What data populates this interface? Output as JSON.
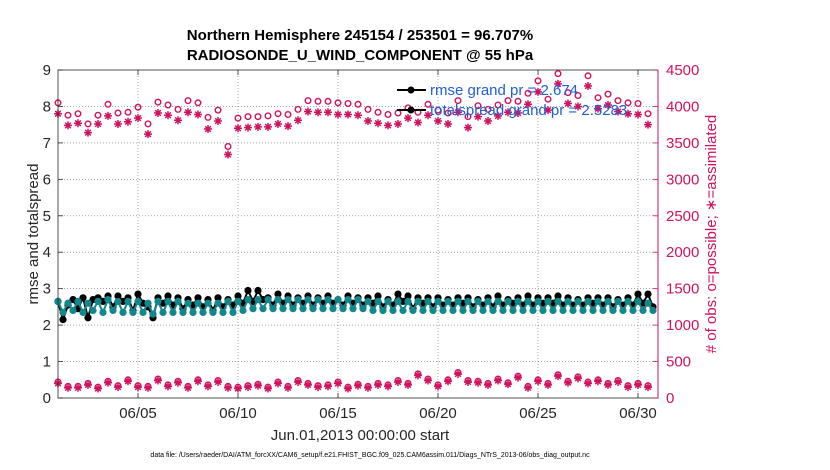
{
  "chart_data": {
    "type": "line",
    "title_line1": "Northern Hemisphere 245154 / 253501 = 96.707%",
    "title_line2": "RADIOSONDE_U_WIND_COMPONENT @ 55 hPa",
    "xlabel": "Jun.01,2013 00:00:00 start",
    "ylabel_left": "rmse and totalspread",
    "ylabel_right": "# of obs: o=possible; ∗=assimilated",
    "xlim": [
      1.0,
      31.0
    ],
    "ylim_left": [
      0,
      9
    ],
    "ylim_right": [
      0,
      4500
    ],
    "x_ticks": [
      {
        "x": 5,
        "label": "06/05"
      },
      {
        "x": 10,
        "label": "06/10"
      },
      {
        "x": 15,
        "label": "06/15"
      },
      {
        "x": 20,
        "label": "06/20"
      },
      {
        "x": 25,
        "label": "06/25"
      },
      {
        "x": 30,
        "label": "06/30"
      }
    ],
    "y_ticks_left": [
      0,
      1,
      2,
      3,
      4,
      5,
      6,
      7,
      8,
      9
    ],
    "y_ticks_right": [
      0,
      500,
      1000,
      1500,
      2000,
      2500,
      3000,
      3500,
      4000,
      4500
    ],
    "legend_entries": [
      "rmse grand pr = 2.674",
      "totalspread grand pr = 2.5283"
    ],
    "legend_position": "top-right",
    "footnote": "data file: /Users/raeder/DAI/ATM_forcXX/CAM6_setup/f.e21.FHIST_BGC.f09_025.CAM6assim.011/Diags_NTrS_2013-06/obs_diag_output.nc",
    "series": [
      {
        "name": "rmse",
        "axis": "left",
        "color": "#000000",
        "x": [
          1.0,
          1.25,
          1.5,
          1.75,
          2.0,
          2.25,
          2.5,
          2.75,
          3.0,
          3.25,
          3.5,
          3.75,
          4.0,
          4.25,
          4.5,
          4.75,
          5.0,
          5.25,
          5.5,
          5.75,
          6.0,
          6.25,
          6.5,
          6.75,
          7.0,
          7.25,
          7.5,
          7.75,
          8.0,
          8.25,
          8.5,
          8.75,
          9.0,
          9.25,
          9.5,
          9.75,
          10.0,
          10.25,
          10.5,
          10.75,
          11.0,
          11.25,
          11.5,
          11.75,
          12.0,
          12.25,
          12.5,
          12.75,
          13.0,
          13.25,
          13.5,
          13.75,
          14.0,
          14.25,
          14.5,
          14.75,
          15.0,
          15.25,
          15.5,
          15.75,
          16.0,
          16.25,
          16.5,
          16.75,
          17.0,
          17.25,
          17.5,
          17.75,
          18.0,
          18.25,
          18.5,
          18.75,
          19.0,
          19.25,
          19.5,
          19.75,
          20.0,
          20.25,
          20.5,
          20.75,
          21.0,
          21.25,
          21.5,
          21.75,
          22.0,
          22.25,
          22.5,
          22.75,
          23.0,
          23.25,
          23.5,
          23.75,
          24.0,
          24.25,
          24.5,
          24.75,
          25.0,
          25.25,
          25.5,
          25.75,
          26.0,
          26.25,
          26.5,
          26.75,
          27.0,
          27.25,
          27.5,
          27.75,
          28.0,
          28.25,
          28.5,
          28.75,
          29.0,
          29.25,
          29.5,
          29.75,
          30.0,
          30.25,
          30.5,
          30.75
        ],
        "y": [
          2.65,
          2.15,
          2.55,
          2.7,
          2.45,
          2.75,
          2.2,
          2.7,
          2.75,
          2.65,
          2.8,
          2.5,
          2.8,
          2.65,
          2.75,
          2.4,
          2.85,
          2.6,
          2.5,
          2.2,
          2.75,
          2.6,
          2.8,
          2.55,
          2.75,
          2.45,
          2.7,
          2.55,
          2.75,
          2.5,
          2.7,
          2.4,
          2.75,
          2.5,
          2.7,
          2.55,
          2.8,
          2.6,
          2.95,
          2.65,
          2.95,
          2.7,
          2.75,
          2.55,
          2.85,
          2.6,
          2.8,
          2.55,
          2.75,
          2.6,
          2.8,
          2.55,
          2.75,
          2.6,
          2.8,
          2.6,
          2.7,
          2.55,
          2.8,
          2.6,
          2.75,
          2.55,
          2.75,
          2.6,
          2.8,
          2.5,
          2.7,
          2.55,
          2.85,
          2.65,
          2.8,
          2.45,
          2.75,
          2.6,
          2.75,
          2.5,
          2.75,
          2.55,
          2.7,
          2.55,
          2.75,
          2.6,
          2.75,
          2.5,
          2.7,
          2.55,
          2.75,
          2.5,
          2.8,
          2.55,
          2.7,
          2.6,
          2.75,
          2.55,
          2.8,
          2.55,
          2.75,
          2.6,
          2.75,
          2.6,
          2.8,
          2.55,
          2.75,
          2.55,
          2.7,
          2.55,
          2.75,
          2.6,
          2.75,
          2.55,
          2.75,
          2.5,
          2.7,
          2.55,
          2.75,
          2.55,
          2.85,
          2.6,
          2.85,
          2.5
        ]
      },
      {
        "name": "totalspread",
        "axis": "left",
        "color": "#12878c",
        "x": [
          1.0,
          1.25,
          1.5,
          1.75,
          2.0,
          2.25,
          2.5,
          2.75,
          3.0,
          3.25,
          3.5,
          3.75,
          4.0,
          4.25,
          4.5,
          4.75,
          5.0,
          5.25,
          5.5,
          5.75,
          6.0,
          6.25,
          6.5,
          6.75,
          7.0,
          7.25,
          7.5,
          7.75,
          8.0,
          8.25,
          8.5,
          8.75,
          9.0,
          9.25,
          9.5,
          9.75,
          10.0,
          10.25,
          10.5,
          10.75,
          11.0,
          11.25,
          11.5,
          11.75,
          12.0,
          12.25,
          12.5,
          12.75,
          13.0,
          13.25,
          13.5,
          13.75,
          14.0,
          14.25,
          14.5,
          14.75,
          15.0,
          15.25,
          15.5,
          15.75,
          16.0,
          16.25,
          16.5,
          16.75,
          17.0,
          17.25,
          17.5,
          17.75,
          18.0,
          18.25,
          18.5,
          18.75,
          19.0,
          19.25,
          19.5,
          19.75,
          20.0,
          20.25,
          20.5,
          20.75,
          21.0,
          21.25,
          21.5,
          21.75,
          22.0,
          22.25,
          22.5,
          22.75,
          23.0,
          23.25,
          23.5,
          23.75,
          24.0,
          24.25,
          24.5,
          24.75,
          25.0,
          25.25,
          25.5,
          25.75,
          26.0,
          26.25,
          26.5,
          26.75,
          27.0,
          27.25,
          27.5,
          27.75,
          28.0,
          28.25,
          28.5,
          28.75,
          29.0,
          29.25,
          29.5,
          29.75,
          30.0,
          30.25,
          30.5,
          30.75
        ],
        "y": [
          2.65,
          2.35,
          2.6,
          2.4,
          2.65,
          2.35,
          2.6,
          2.4,
          2.65,
          2.35,
          2.7,
          2.4,
          2.65,
          2.35,
          2.65,
          2.35,
          2.65,
          2.35,
          2.6,
          2.3,
          2.65,
          2.35,
          2.65,
          2.35,
          2.65,
          2.35,
          2.6,
          2.35,
          2.6,
          2.35,
          2.6,
          2.35,
          2.6,
          2.35,
          2.65,
          2.35,
          2.65,
          2.4,
          2.7,
          2.45,
          2.7,
          2.45,
          2.7,
          2.45,
          2.7,
          2.45,
          2.7,
          2.45,
          2.7,
          2.45,
          2.7,
          2.45,
          2.7,
          2.45,
          2.7,
          2.45,
          2.7,
          2.45,
          2.7,
          2.45,
          2.7,
          2.45,
          2.65,
          2.4,
          2.65,
          2.4,
          2.65,
          2.4,
          2.65,
          2.4,
          2.65,
          2.4,
          2.65,
          2.4,
          2.65,
          2.4,
          2.65,
          2.4,
          2.65,
          2.4,
          2.65,
          2.4,
          2.65,
          2.4,
          2.65,
          2.4,
          2.65,
          2.4,
          2.65,
          2.4,
          2.65,
          2.4,
          2.65,
          2.4,
          2.65,
          2.4,
          2.65,
          2.4,
          2.65,
          2.4,
          2.65,
          2.4,
          2.65,
          2.4,
          2.65,
          2.4,
          2.65,
          2.4,
          2.65,
          2.4,
          2.65,
          2.4,
          2.65,
          2.4,
          2.65,
          2.4,
          2.65,
          2.4,
          2.6,
          2.4
        ]
      },
      {
        "name": "possible",
        "axis": "right",
        "color": "#d1125f",
        "marker": "circle",
        "x": [
          1.0,
          1.5,
          2.0,
          2.5,
          3.0,
          3.5,
          4.0,
          4.5,
          5.0,
          5.5,
          6.0,
          6.5,
          7.0,
          7.5,
          8.0,
          8.5,
          9.0,
          9.5,
          10.0,
          10.5,
          11.0,
          11.5,
          12.0,
          12.5,
          13.0,
          13.5,
          14.0,
          14.5,
          15.0,
          15.5,
          16.0,
          16.5,
          17.0,
          17.5,
          18.0,
          18.5,
          19.0,
          19.5,
          20.0,
          20.5,
          21.0,
          21.5,
          22.0,
          22.5,
          23.0,
          23.5,
          24.0,
          24.5,
          25.0,
          25.5,
          26.0,
          26.5,
          27.0,
          27.5,
          28.0,
          28.5,
          29.0,
          29.5,
          30.0,
          30.5
        ],
        "y": [
          4050,
          3880,
          3900,
          3760,
          3880,
          4030,
          3910,
          3920,
          3990,
          3760,
          4060,
          4020,
          3960,
          4080,
          4050,
          3850,
          3950,
          3450,
          3840,
          3860,
          3860,
          3870,
          3900,
          3890,
          3960,
          4080,
          4070,
          4070,
          4050,
          4040,
          4030,
          3960,
          3920,
          3890,
          3910,
          3980,
          3920,
          4030,
          3950,
          3910,
          4080,
          3860,
          4010,
          3960,
          4020,
          4080,
          4070,
          4180,
          4350,
          4100,
          4450,
          4190,
          4150,
          4420,
          4120,
          4170,
          4080,
          4050,
          4040,
          3900
        ]
      },
      {
        "name": "assimilated",
        "axis": "right",
        "color": "#d1125f",
        "marker": "asterisk",
        "x": [
          1.0,
          1.5,
          2.0,
          2.5,
          3.0,
          3.5,
          4.0,
          4.5,
          5.0,
          5.5,
          6.0,
          6.5,
          7.0,
          7.5,
          8.0,
          8.5,
          9.0,
          9.5,
          10.0,
          10.5,
          11.0,
          11.5,
          12.0,
          12.5,
          13.0,
          13.5,
          14.0,
          14.5,
          15.0,
          15.5,
          16.0,
          16.5,
          17.0,
          17.5,
          18.0,
          18.5,
          19.0,
          19.5,
          20.0,
          20.5,
          21.0,
          21.5,
          22.0,
          22.5,
          23.0,
          23.5,
          24.0,
          24.5,
          25.0,
          25.5,
          26.0,
          26.5,
          27.0,
          27.5,
          28.0,
          28.5,
          29.0,
          29.5,
          30.0,
          30.5
        ],
        "y": [
          3900,
          3740,
          3770,
          3640,
          3760,
          3870,
          3760,
          3790,
          3840,
          3620,
          3910,
          3880,
          3810,
          3920,
          3890,
          3690,
          3800,
          3340,
          3700,
          3710,
          3720,
          3720,
          3760,
          3730,
          3810,
          3930,
          3920,
          3920,
          3890,
          3890,
          3880,
          3800,
          3770,
          3740,
          3760,
          3840,
          3780,
          3880,
          3800,
          3760,
          3920,
          3710,
          3860,
          3800,
          3870,
          3920,
          3910,
          4030,
          4200,
          3950,
          4310,
          4040,
          4000,
          4280,
          3970,
          4020,
          3930,
          3900,
          3890,
          3750
        ]
      },
      {
        "name": "possible-lower",
        "axis": "right",
        "color": "#d1125f",
        "marker": "circle",
        "x": [
          1.0,
          1.5,
          2.0,
          2.5,
          3.0,
          3.5,
          4.0,
          4.5,
          5.0,
          5.5,
          6.0,
          6.5,
          7.0,
          7.5,
          8.0,
          8.5,
          9.0,
          9.5,
          10.0,
          10.5,
          11.0,
          11.5,
          12.0,
          12.5,
          13.0,
          13.5,
          14.0,
          14.5,
          15.0,
          15.5,
          16.0,
          16.5,
          17.0,
          17.5,
          18.0,
          18.5,
          19.0,
          19.5,
          20.0,
          20.5,
          21.0,
          21.5,
          22.0,
          22.5,
          23.0,
          23.5,
          24.0,
          24.5,
          25.0,
          25.5,
          26.0,
          26.5,
          27.0,
          27.5,
          28.0,
          28.5,
          29.0,
          29.5,
          30.0,
          30.5
        ],
        "y": [
          220,
          160,
          160,
          200,
          150,
          230,
          170,
          250,
          170,
          160,
          260,
          180,
          230,
          160,
          250,
          180,
          240,
          160,
          150,
          170,
          190,
          150,
          220,
          160,
          240,
          200,
          170,
          180,
          220,
          150,
          190,
          160,
          200,
          180,
          240,
          200,
          330,
          260,
          180,
          250,
          350,
          240,
          230,
          200,
          260,
          210,
          300,
          160,
          250,
          200,
          320,
          230,
          290,
          220,
          250,
          200,
          240,
          170,
          200,
          170
        ]
      },
      {
        "name": "assimilated-lower",
        "axis": "right",
        "color": "#d1125f",
        "marker": "asterisk",
        "x": [
          1.0,
          1.5,
          2.0,
          2.5,
          3.0,
          3.5,
          4.0,
          4.5,
          5.0,
          5.5,
          6.0,
          6.5,
          7.0,
          7.5,
          8.0,
          8.5,
          9.0,
          9.5,
          10.0,
          10.5,
          11.0,
          11.5,
          12.0,
          12.5,
          13.0,
          13.5,
          14.0,
          14.5,
          15.0,
          15.5,
          16.0,
          16.5,
          17.0,
          17.5,
          18.0,
          18.5,
          19.0,
          19.5,
          20.0,
          20.5,
          21.0,
          21.5,
          22.0,
          22.5,
          23.0,
          23.5,
          24.0,
          24.5,
          25.0,
          25.5,
          26.0,
          26.5,
          27.0,
          27.5,
          28.0,
          28.5,
          29.0,
          29.5,
          30.0,
          30.5
        ],
        "y": [
          200,
          140,
          140,
          180,
          130,
          210,
          150,
          230,
          150,
          140,
          240,
          160,
          210,
          140,
          230,
          160,
          220,
          140,
          130,
          150,
          170,
          130,
          200,
          140,
          220,
          180,
          150,
          160,
          200,
          130,
          170,
          140,
          180,
          160,
          220,
          180,
          310,
          240,
          160,
          230,
          330,
          220,
          210,
          180,
          240,
          190,
          280,
          140,
          230,
          180,
          300,
          210,
          270,
          200,
          230,
          180,
          220,
          150,
          180,
          150
        ]
      }
    ]
  }
}
